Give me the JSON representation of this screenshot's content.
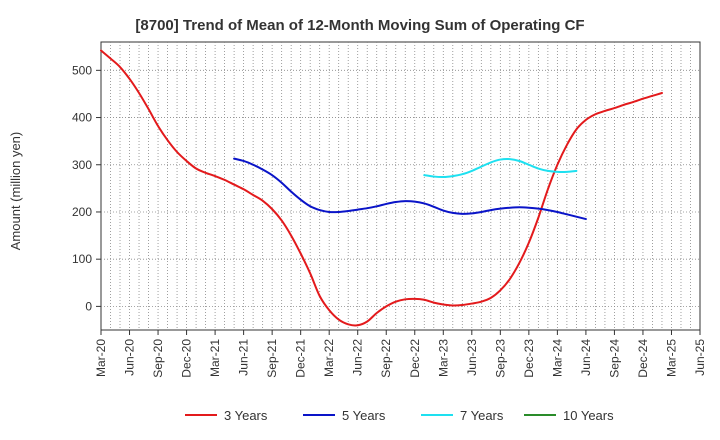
{
  "chart_data": {
    "type": "line",
    "title": "[8700]  Trend of Mean of 12-Month Moving Sum of Operating CF",
    "xlabel": "",
    "ylabel": "Amount (million yen)",
    "ylim": [
      -50,
      560
    ],
    "yticks": [
      0,
      100,
      200,
      300,
      400,
      500
    ],
    "x_tick_labels": [
      "Mar-20",
      "Jun-20",
      "Sep-20",
      "Dec-20",
      "Mar-21",
      "Jun-21",
      "Sep-21",
      "Dec-21",
      "Mar-22",
      "Jun-22",
      "Sep-22",
      "Dec-22",
      "Mar-23",
      "Jun-23",
      "Sep-23",
      "Dec-23",
      "Mar-24",
      "Jun-24",
      "Sep-24",
      "Dec-24",
      "Mar-25",
      "Jun-25"
    ],
    "x_range_months": [
      0,
      63
    ],
    "legend_position": "bottom",
    "series": [
      {
        "name": "3 Years",
        "color": "#e31a1c",
        "points": [
          [
            0,
            542
          ],
          [
            1,
            525
          ],
          [
            2,
            507
          ],
          [
            3,
            482
          ],
          [
            4,
            452
          ],
          [
            5,
            418
          ],
          [
            6,
            382
          ],
          [
            7,
            352
          ],
          [
            8,
            327
          ],
          [
            9,
            308
          ],
          [
            10,
            292
          ],
          [
            11,
            283
          ],
          [
            12,
            276
          ],
          [
            13,
            268
          ],
          [
            14,
            258
          ],
          [
            15,
            248
          ],
          [
            16,
            236
          ],
          [
            17,
            224
          ],
          [
            18,
            206
          ],
          [
            19,
            182
          ],
          [
            20,
            150
          ],
          [
            21,
            112
          ],
          [
            22,
            70
          ],
          [
            23,
            22
          ],
          [
            24,
            -8
          ],
          [
            25,
            -28
          ],
          [
            26,
            -38
          ],
          [
            27,
            -40
          ],
          [
            28,
            -32
          ],
          [
            29,
            -14
          ],
          [
            30,
            0
          ],
          [
            31,
            10
          ],
          [
            32,
            15
          ],
          [
            33,
            16
          ],
          [
            34,
            14
          ],
          [
            35,
            8
          ],
          [
            36,
            4
          ],
          [
            37,
            2
          ],
          [
            38,
            3
          ],
          [
            39,
            6
          ],
          [
            40,
            10
          ],
          [
            41,
            18
          ],
          [
            42,
            34
          ],
          [
            43,
            58
          ],
          [
            44,
            92
          ],
          [
            45,
            135
          ],
          [
            46,
            188
          ],
          [
            47,
            248
          ],
          [
            48,
            300
          ],
          [
            49,
            342
          ],
          [
            50,
            375
          ],
          [
            51,
            395
          ],
          [
            52,
            407
          ],
          [
            53,
            414
          ],
          [
            54,
            420
          ],
          [
            55,
            427
          ],
          [
            56,
            433
          ],
          [
            57,
            440
          ],
          [
            58,
            446
          ],
          [
            59,
            452
          ]
        ]
      },
      {
        "name": "5 Years",
        "color": "#0a14c8",
        "points": [
          [
            14,
            313
          ],
          [
            15,
            308
          ],
          [
            16,
            300
          ],
          [
            17,
            290
          ],
          [
            18,
            278
          ],
          [
            19,
            262
          ],
          [
            20,
            243
          ],
          [
            21,
            226
          ],
          [
            22,
            212
          ],
          [
            23,
            204
          ],
          [
            24,
            200
          ],
          [
            25,
            200
          ],
          [
            26,
            202
          ],
          [
            27,
            205
          ],
          [
            28,
            208
          ],
          [
            29,
            212
          ],
          [
            30,
            217
          ],
          [
            31,
            221
          ],
          [
            32,
            223
          ],
          [
            33,
            222
          ],
          [
            34,
            218
          ],
          [
            35,
            211
          ],
          [
            36,
            203
          ],
          [
            37,
            198
          ],
          [
            38,
            196
          ],
          [
            39,
            197
          ],
          [
            40,
            200
          ],
          [
            41,
            204
          ],
          [
            42,
            207
          ],
          [
            43,
            209
          ],
          [
            44,
            210
          ],
          [
            45,
            209
          ],
          [
            46,
            207
          ],
          [
            47,
            204
          ],
          [
            48,
            200
          ],
          [
            49,
            195
          ],
          [
            50,
            190
          ],
          [
            51,
            185
          ]
        ]
      },
      {
        "name": "7 Years",
        "color": "#1ee0f0",
        "points": [
          [
            34,
            278
          ],
          [
            35,
            275
          ],
          [
            36,
            274
          ],
          [
            37,
            276
          ],
          [
            38,
            280
          ],
          [
            39,
            287
          ],
          [
            40,
            296
          ],
          [
            41,
            305
          ],
          [
            42,
            311
          ],
          [
            43,
            312
          ],
          [
            44,
            308
          ],
          [
            45,
            300
          ],
          [
            46,
            292
          ],
          [
            47,
            287
          ],
          [
            48,
            285
          ],
          [
            49,
            285
          ],
          [
            50,
            287
          ]
        ]
      },
      {
        "name": "10 Years",
        "color": "#2a8c2a",
        "points": []
      }
    ]
  }
}
